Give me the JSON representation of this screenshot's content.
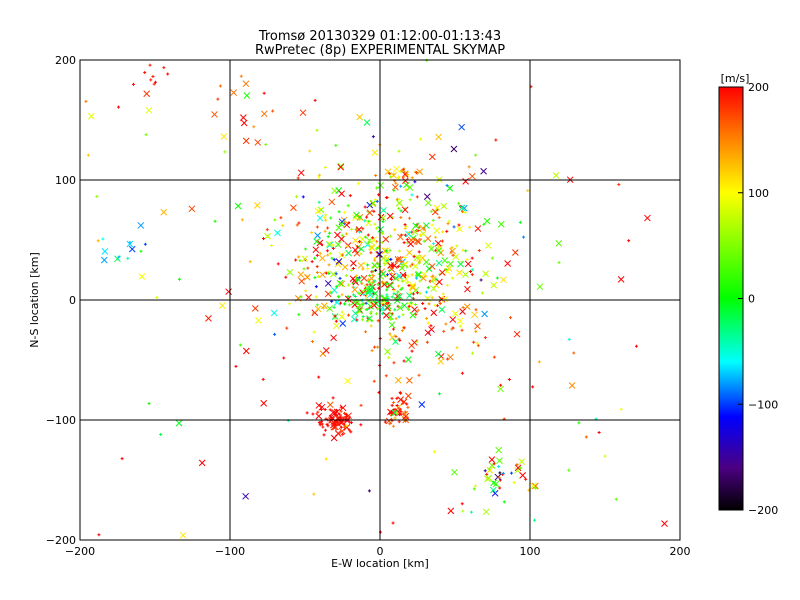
{
  "chart_data": {
    "type": "scatter",
    "title": "Tromsø 20130329 01:12:00-01:13:43",
    "subtitle": "RwPretec (8p) EXPERIMENTAL SKYMAP",
    "xlabel": "E-W location [km]",
    "ylabel": "N-S location [km]",
    "xlim": [
      -200,
      200
    ],
    "ylim": [
      -200,
      200
    ],
    "xticks": [
      "−200",
      "−100",
      "0",
      "100",
      "200"
    ],
    "yticks": [
      "−200",
      "−100",
      "0",
      "100",
      "200"
    ],
    "grid": true,
    "colorbar": {
      "label": "[m/s]",
      "range": [
        -200,
        200
      ],
      "ticks": [
        "200",
        "100",
        "0",
        "−100",
        "−200"
      ],
      "colormap": "black-purple-blue-cyan-green-yellow-orange-red"
    },
    "markers": [
      "x",
      "+"
    ],
    "clusters": [
      {
        "x": 0,
        "y": 30,
        "sx": 35,
        "sy": 30,
        "n": 420,
        "v": 110,
        "sv": 90
      },
      {
        "x": 10,
        "y": 60,
        "sx": 40,
        "sy": 35,
        "n": 140,
        "v": 60,
        "sv": 110
      },
      {
        "x": -30,
        "y": -100,
        "sx": 7,
        "sy": 7,
        "n": 80,
        "v": 200,
        "sv": 15
      },
      {
        "x": 12,
        "y": -95,
        "sx": 4,
        "sy": 7,
        "n": 40,
        "v": 190,
        "sv": 40
      },
      {
        "x": 80,
        "y": -150,
        "sx": 12,
        "sy": 10,
        "n": 45,
        "v": 110,
        "sv": 120
      },
      {
        "x": -5,
        "y": 0,
        "sx": 14,
        "sy": 8,
        "n": 80,
        "v": -5,
        "sv": 35
      },
      {
        "x": 15,
        "y": 105,
        "sx": 5,
        "sy": 3,
        "n": 25,
        "v": 140,
        "sv": 40
      },
      {
        "x": 30,
        "y": -30,
        "sx": 30,
        "sy": 25,
        "n": 70,
        "v": 180,
        "sv": 40
      },
      {
        "x": -150,
        "y": 185,
        "sx": 12,
        "sy": 8,
        "n": 10,
        "v": 195,
        "sv": 10
      },
      {
        "x": -90,
        "y": 160,
        "sx": 15,
        "sy": 15,
        "n": 15,
        "v": 180,
        "sv": 40
      },
      {
        "x": -170,
        "y": 40,
        "sx": 10,
        "sy": 12,
        "n": 12,
        "v": -60,
        "sv": 30
      },
      {
        "x": -20,
        "y": 0,
        "sx": 120,
        "sy": 120,
        "n": 160,
        "v": 120,
        "sv": 120
      }
    ]
  }
}
